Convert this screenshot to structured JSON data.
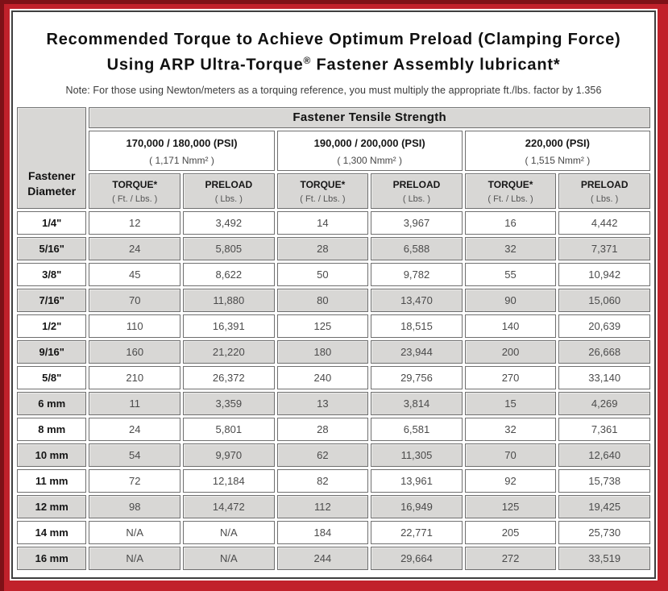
{
  "colors": {
    "frame_red": "#c1212b",
    "frame_dark_edge": "#7e1117",
    "panel_border": "#3f3f3f",
    "cell_gray": "#d8d7d5",
    "cell_border": "#6f6f6f"
  },
  "title": {
    "line1": "Recommended Torque to Achieve Optimum Preload (Clamping Force)",
    "line2_before_reg": "Using ARP Ultra-Torque",
    "registered_mark": "®",
    "line2_after_reg": " Fastener Assembly lubricant*"
  },
  "note": "Note: For those using Newton/meters as a torquing reference, you must multiply the appropriate ft./lbs. factor by 1.356",
  "table": {
    "corner_header": {
      "line1": "Fastener",
      "line2": "Diameter"
    },
    "tensile_strength_header": "Fastener Tensile Strength",
    "column_groups": [
      {
        "psi": "170,000 / 180,000 (PSI)",
        "nmm": "( 1,171 Nmm² )"
      },
      {
        "psi": "190,000 / 200,000 (PSI)",
        "nmm": "( 1,300 Nmm² )"
      },
      {
        "psi": "220,000 (PSI)",
        "nmm": "( 1,515 Nmm² )"
      }
    ],
    "sub_headers": {
      "torque_label": "TORQUE*",
      "torque_unit": "( Ft. / Lbs. )",
      "preload_label": "PRELOAD",
      "preload_unit": "( Lbs. )"
    },
    "rows": [
      {
        "diameter": "1/4\"",
        "values": [
          "12",
          "3,492",
          "14",
          "3,967",
          "16",
          "4,442"
        ]
      },
      {
        "diameter": "5/16\"",
        "values": [
          "24",
          "5,805",
          "28",
          "6,588",
          "32",
          "7,371"
        ]
      },
      {
        "diameter": "3/8\"",
        "values": [
          "45",
          "8,622",
          "50",
          "9,782",
          "55",
          "10,942"
        ]
      },
      {
        "diameter": "7/16\"",
        "values": [
          "70",
          "11,880",
          "80",
          "13,470",
          "90",
          "15,060"
        ]
      },
      {
        "diameter": "1/2\"",
        "values": [
          "110",
          "16,391",
          "125",
          "18,515",
          "140",
          "20,639"
        ]
      },
      {
        "diameter": "9/16\"",
        "values": [
          "160",
          "21,220",
          "180",
          "23,944",
          "200",
          "26,668"
        ]
      },
      {
        "diameter": "5/8\"",
        "values": [
          "210",
          "26,372",
          "240",
          "29,756",
          "270",
          "33,140"
        ]
      },
      {
        "diameter": "6 mm",
        "values": [
          "11",
          "3,359",
          "13",
          "3,814",
          "15",
          "4,269"
        ]
      },
      {
        "diameter": "8 mm",
        "values": [
          "24",
          "5,801",
          "28",
          "6,581",
          "32",
          "7,361"
        ]
      },
      {
        "diameter": "10 mm",
        "values": [
          "54",
          "9,970",
          "62",
          "11,305",
          "70",
          "12,640"
        ]
      },
      {
        "diameter": "11 mm",
        "values": [
          "72",
          "12,184",
          "82",
          "13,961",
          "92",
          "15,738"
        ]
      },
      {
        "diameter": "12 mm",
        "values": [
          "98",
          "14,472",
          "112",
          "16,949",
          "125",
          "19,425"
        ]
      },
      {
        "diameter": "14 mm",
        "values": [
          "N/A",
          "N/A",
          "184",
          "22,771",
          "205",
          "25,730"
        ]
      },
      {
        "diameter": "16 mm",
        "values": [
          "N/A",
          "N/A",
          "244",
          "29,664",
          "272",
          "33,519"
        ]
      }
    ]
  }
}
